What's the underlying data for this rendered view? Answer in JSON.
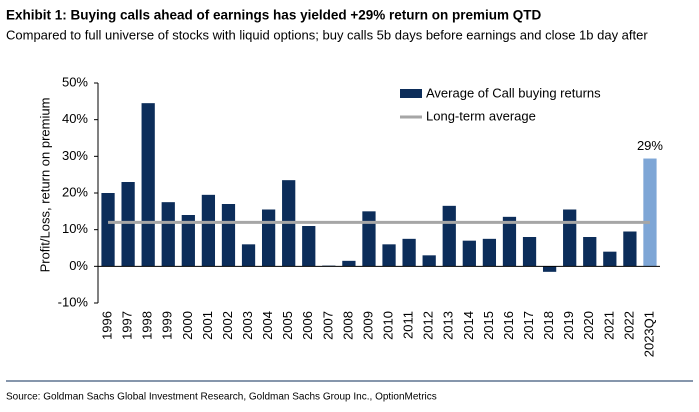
{
  "chart_data": {
    "type": "bar",
    "title": "Exhibit 1: Buying calls ahead of earnings has yielded +29% return on premium QTD",
    "subtitle": "Compared to full universe of stocks with liquid options; buy calls 5b days before earnings and close 1b day after",
    "source": "Source: Goldman Sachs Global Investment Research, Goldman Sachs Group Inc., OptionMetrics",
    "y_label": "Profit/Loss, return on premium",
    "categories": [
      "1996",
      "1997",
      "1998",
      "1999",
      "2000",
      "2001",
      "2002",
      "2003",
      "2004",
      "2005",
      "2006",
      "2007",
      "2008",
      "2009",
      "2010",
      "2011",
      "2012",
      "2013",
      "2014",
      "2015",
      "2016",
      "2017",
      "2018",
      "2019",
      "2020",
      "2021",
      "2022",
      "2023Q1"
    ],
    "series": [
      {
        "name": "Average of Call buying returns",
        "color": "#0c2d5a",
        "values": [
          20,
          23,
          44.5,
          17.5,
          14,
          19.5,
          17,
          6,
          15.5,
          23.5,
          11,
          0.2,
          1.5,
          15,
          6,
          7.5,
          3,
          16.5,
          7,
          7.5,
          13.5,
          8,
          -1.5,
          15.5,
          8,
          4,
          9.5,
          29.4
        ],
        "bar_colors": [
          "#0c2d5a",
          "#0c2d5a",
          "#0c2d5a",
          "#0c2d5a",
          "#0c2d5a",
          "#0c2d5a",
          "#0c2d5a",
          "#0c2d5a",
          "#0c2d5a",
          "#0c2d5a",
          "#0c2d5a",
          "#0c2d5a",
          "#0c2d5a",
          "#0c2d5a",
          "#0c2d5a",
          "#0c2d5a",
          "#0c2d5a",
          "#0c2d5a",
          "#0c2d5a",
          "#0c2d5a",
          "#0c2d5a",
          "#0c2d5a",
          "#0c2d5a",
          "#0c2d5a",
          "#0c2d5a",
          "#0c2d5a",
          "#0c2d5a",
          "#7ea6d6"
        ],
        "value_labels": [
          null,
          null,
          null,
          null,
          null,
          null,
          null,
          null,
          null,
          null,
          null,
          null,
          null,
          null,
          null,
          null,
          null,
          null,
          null,
          null,
          null,
          null,
          null,
          null,
          null,
          null,
          null,
          "29%"
        ]
      },
      {
        "name": "Long-term average",
        "type": "line",
        "color": "#a6a6a6",
        "value": 12
      }
    ],
    "ylim": [
      -10,
      50
    ],
    "yticks": [
      {
        "value": -10,
        "label": "-10%"
      },
      {
        "value": 0,
        "label": "0%"
      },
      {
        "value": 10,
        "label": "10%"
      },
      {
        "value": 20,
        "label": "20%"
      },
      {
        "value": 30,
        "label": "30%"
      },
      {
        "value": 40,
        "label": "40%"
      },
      {
        "value": 50,
        "label": "50%"
      }
    ],
    "grid": false,
    "legend": "top-right"
  }
}
